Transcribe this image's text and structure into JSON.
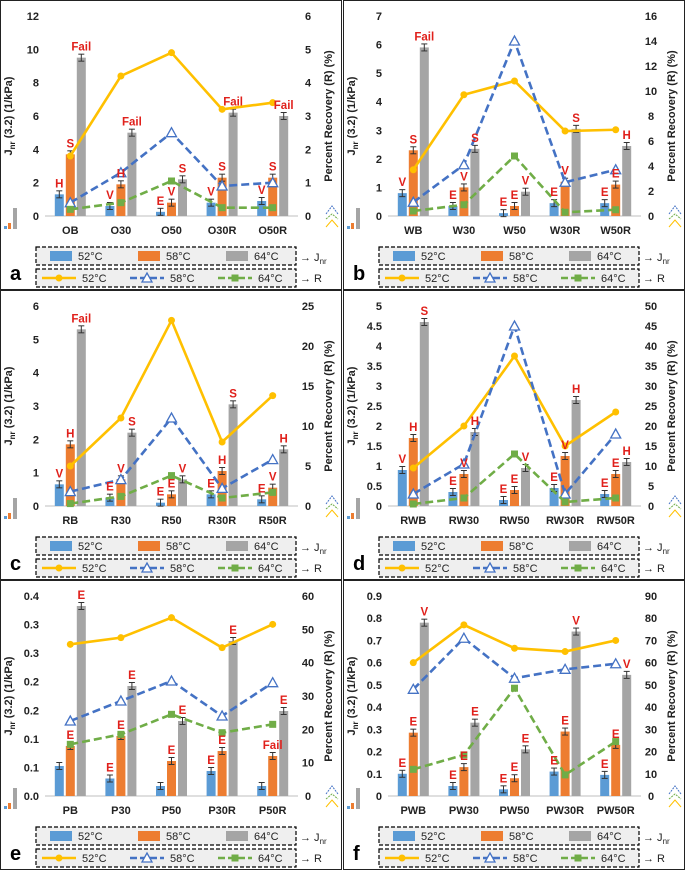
{
  "figure": {
    "colors": {
      "c52": "#5B9BD5",
      "c58": "#ED7D31",
      "c64": "#A5A5A5",
      "r52": "#FFC000",
      "r58": "#4472C4",
      "r64": "#70AD47",
      "label": "#E0201B"
    },
    "legend": {
      "bar_labels": [
        "52°C",
        "58°C",
        "64°C"
      ],
      "line_labels": [
        "52°C",
        "58°C",
        "64°C"
      ],
      "jnr_arrow": "→ J",
      "jnr_sub": "nr",
      "r_arrow": "→ R"
    },
    "y_left_title": "J",
    "y_left_sub": "nr",
    "y_left_rest": " (3.2) (1/kPa)",
    "y_right_title": "Percent Recovery (R) (%)"
  },
  "chart_data": [
    {
      "panel": "a",
      "type": "bar",
      "categories": [
        "OB",
        "O30",
        "O50",
        "O30R",
        "O50R"
      ],
      "left_ylim": [
        0,
        12
      ],
      "left_ticks": [
        "0",
        "2",
        "4",
        "6",
        "8",
        "10",
        "12"
      ],
      "right_ylim": [
        0,
        6
      ],
      "right_ticks": [
        "0",
        "1",
        "2",
        "3",
        "4",
        "5",
        "6"
      ],
      "jnr": [
        {
          "name": "52°C",
          "values": [
            1.3,
            0.6,
            0.25,
            0.8,
            0.9
          ]
        },
        {
          "name": "58°C",
          "values": [
            3.7,
            1.9,
            0.8,
            2.3,
            2.3
          ]
        },
        {
          "name": "64°C",
          "values": [
            9.5,
            5.0,
            2.2,
            6.2,
            6.0
          ]
        }
      ],
      "recovery": [
        {
          "name": "52°C",
          "values": [
            1.8,
            4.2,
            4.9,
            3.2,
            3.4
          ]
        },
        {
          "name": "58°C",
          "values": [
            0.4,
            1.3,
            2.5,
            0.9,
            1.0
          ]
        },
        {
          "name": "64°C",
          "values": [
            0.2,
            0.4,
            1.05,
            0.25,
            0.25
          ]
        }
      ],
      "labels": [
        [
          {
            "text": "H",
            "bar": 0,
            "value": 1.3
          },
          {
            "text": "S",
            "bar": 1,
            "value": 3.7
          },
          {
            "text": "Fail",
            "bar": 2,
            "value": 9.5
          }
        ],
        [
          {
            "text": "V",
            "bar": 0,
            "value": 0.6
          },
          {
            "text": "H",
            "bar": 1,
            "value": 1.9
          },
          {
            "text": "Fail",
            "bar": 2,
            "value": 5.0
          }
        ],
        [
          {
            "text": "E",
            "bar": 0,
            "value": 0.25
          },
          {
            "text": "V",
            "bar": 1,
            "value": 0.8
          },
          {
            "text": "S",
            "bar": 2,
            "value": 2.2
          }
        ],
        [
          {
            "text": "V",
            "bar": 0,
            "value": 0.8
          },
          {
            "text": "S",
            "bar": 1,
            "value": 2.3
          },
          {
            "text": "Fail",
            "bar": 2,
            "value": 6.2
          }
        ],
        [
          {
            "text": "V",
            "bar": 0,
            "value": 0.9
          },
          {
            "text": "S",
            "bar": 1,
            "value": 2.3
          },
          {
            "text": "Fail",
            "bar": 2,
            "value": 6.0
          }
        ]
      ]
    },
    {
      "panel": "b",
      "type": "bar",
      "categories": [
        "WB",
        "W30",
        "W50",
        "W30R",
        "W50R"
      ],
      "left_ylim": [
        0,
        7
      ],
      "left_ticks": [
        "0",
        "1",
        "2",
        "3",
        "4",
        "5",
        "6",
        "7"
      ],
      "right_ylim": [
        0,
        16
      ],
      "right_ticks": [
        "0",
        "2",
        "4",
        "6",
        "8",
        "10",
        "12",
        "14",
        "16"
      ],
      "jnr": [
        {
          "name": "52°C",
          "values": [
            0.8,
            0.35,
            0.1,
            0.45,
            0.45
          ]
        },
        {
          "name": "58°C",
          "values": [
            2.3,
            1.0,
            0.35,
            1.2,
            1.1
          ]
        },
        {
          "name": "64°C",
          "values": [
            5.9,
            2.35,
            0.85,
            3.05,
            2.45
          ]
        }
      ],
      "recovery": [
        {
          "name": "52°C",
          "values": [
            3.7,
            9.7,
            10.8,
            6.8,
            6.9
          ]
        },
        {
          "name": "58°C",
          "values": [
            1.1,
            4.1,
            14.0,
            2.7,
            3.7
          ]
        },
        {
          "name": "64°C",
          "values": [
            0.4,
            0.9,
            4.8,
            0.3,
            0.5
          ]
        }
      ],
      "labels": [
        [
          {
            "text": "V",
            "bar": 0,
            "value": 0.8
          },
          {
            "text": "S",
            "bar": 1,
            "value": 2.3
          },
          {
            "text": "Fail",
            "bar": 2,
            "value": 5.9
          }
        ],
        [
          {
            "text": "E",
            "bar": 0,
            "value": 0.35
          },
          {
            "text": "V",
            "bar": 1,
            "value": 1.0
          },
          {
            "text": "S",
            "bar": 2,
            "value": 2.35
          }
        ],
        [
          {
            "text": "E",
            "bar": 0,
            "value": 0.1
          },
          {
            "text": "E",
            "bar": 1,
            "value": 0.35
          },
          {
            "text": "V",
            "bar": 2,
            "value": 0.85
          }
        ],
        [
          {
            "text": "E",
            "bar": 0,
            "value": 0.45
          },
          {
            "text": "V",
            "bar": 1,
            "value": 1.2
          },
          {
            "text": "S",
            "bar": 2,
            "value": 3.05
          }
        ],
        [
          {
            "text": "E",
            "bar": 0,
            "value": 0.45
          },
          {
            "text": "E",
            "bar": 1,
            "value": 1.1
          },
          {
            "text": "H",
            "bar": 2,
            "value": 2.45
          }
        ]
      ]
    },
    {
      "panel": "c",
      "type": "bar",
      "categories": [
        "RB",
        "R30",
        "R50",
        "R30R",
        "R50R"
      ],
      "left_ylim": [
        0,
        6
      ],
      "left_ticks": [
        "0",
        "1",
        "2",
        "3",
        "4",
        "5",
        "6"
      ],
      "right_ylim": [
        0,
        25
      ],
      "right_ticks": [
        "0",
        "5",
        "10",
        "15",
        "20",
        "25"
      ],
      "jnr": [
        {
          "name": "52°C",
          "values": [
            0.65,
            0.25,
            0.1,
            0.35,
            0.2
          ]
        },
        {
          "name": "58°C",
          "values": [
            1.85,
            0.8,
            0.35,
            1.05,
            0.55
          ]
        },
        {
          "name": "64°C",
          "values": [
            5.3,
            2.2,
            0.8,
            3.05,
            1.7
          ]
        }
      ],
      "recovery": [
        {
          "name": "52°C",
          "values": [
            5.0,
            11.0,
            23.2,
            8.0,
            13.8
          ]
        },
        {
          "name": "58°C",
          "values": [
            1.8,
            3.3,
            11.0,
            2.2,
            5.8
          ]
        },
        {
          "name": "64°C",
          "values": [
            0.3,
            1.2,
            3.8,
            1.0,
            1.7
          ]
        }
      ],
      "labels": [
        [
          {
            "text": "V",
            "bar": 0,
            "value": 0.65
          },
          {
            "text": "H",
            "bar": 1,
            "value": 1.85
          },
          {
            "text": "Fail",
            "bar": 2,
            "value": 5.3
          }
        ],
        [
          {
            "text": "E",
            "bar": 0,
            "value": 0.25
          },
          {
            "text": "V",
            "bar": 1,
            "value": 0.8
          },
          {
            "text": "S",
            "bar": 2,
            "value": 2.2
          }
        ],
        [
          {
            "text": "E",
            "bar": 0,
            "value": 0.1
          },
          {
            "text": "E",
            "bar": 1,
            "value": 0.35
          },
          {
            "text": "V",
            "bar": 2,
            "value": 0.8
          }
        ],
        [
          {
            "text": "E",
            "bar": 0,
            "value": 0.35
          },
          {
            "text": "H",
            "bar": 1,
            "value": 1.05
          },
          {
            "text": "S",
            "bar": 2,
            "value": 3.05
          }
        ],
        [
          {
            "text": "E",
            "bar": 0,
            "value": 0.2
          },
          {
            "text": "V",
            "bar": 1,
            "value": 0.55
          },
          {
            "text": "H",
            "bar": 2,
            "value": 1.7
          }
        ]
      ]
    },
    {
      "panel": "d",
      "type": "bar",
      "categories": [
        "RWB",
        "RW30",
        "RW50",
        "RW30R",
        "RW50R"
      ],
      "left_ylim": [
        0,
        5
      ],
      "left_ticks": [
        "0",
        "0.5",
        "1",
        "1.5",
        "2",
        "2.5",
        "3",
        "3.5",
        "4",
        "4.5",
        "5"
      ],
      "right_ylim": [
        0,
        50
      ],
      "right_ticks": [
        "0",
        "5",
        "10",
        "15",
        "20",
        "25",
        "30",
        "35",
        "40",
        "45",
        "50"
      ],
      "jnr": [
        {
          "name": "52°C",
          "values": [
            0.9,
            0.35,
            0.15,
            0.45,
            0.3
          ]
        },
        {
          "name": "58°C",
          "values": [
            1.7,
            0.8,
            0.4,
            1.25,
            0.8
          ]
        },
        {
          "name": "64°C",
          "values": [
            4.6,
            1.85,
            0.95,
            2.65,
            1.1
          ]
        }
      ],
      "recovery": [
        {
          "name": "52°C",
          "values": [
            9.5,
            20.0,
            37.5,
            15.0,
            23.5
          ]
        },
        {
          "name": "58°C",
          "values": [
            3.0,
            10.5,
            45.0,
            3.0,
            18.0
          ]
        },
        {
          "name": "64°C",
          "values": [
            0.5,
            2.0,
            13.0,
            1.0,
            2.0
          ]
        }
      ],
      "labels": [
        [
          {
            "text": "V",
            "bar": 0,
            "value": 0.9
          },
          {
            "text": "H",
            "bar": 1,
            "value": 1.7
          },
          {
            "text": "S",
            "bar": 2,
            "value": 4.6
          }
        ],
        [
          {
            "text": "E",
            "bar": 0,
            "value": 0.35
          },
          {
            "text": "V",
            "bar": 1,
            "value": 0.8
          },
          {
            "text": "H",
            "bar": 2,
            "value": 1.85
          }
        ],
        [
          {
            "text": "E",
            "bar": 0,
            "value": 0.15
          },
          {
            "text": "E",
            "bar": 1,
            "value": 0.4
          },
          {
            "text": "V",
            "bar": 2,
            "value": 0.95
          }
        ],
        [
          {
            "text": "E",
            "bar": 0,
            "value": 0.45
          },
          {
            "text": "V",
            "bar": 1,
            "value": 1.25
          },
          {
            "text": "H",
            "bar": 2,
            "value": 2.65
          }
        ],
        [
          {
            "text": "E",
            "bar": 0,
            "value": 0.3
          },
          {
            "text": "E",
            "bar": 1,
            "value": 0.8
          },
          {
            "text": "H",
            "bar": 2,
            "value": 1.1
          }
        ]
      ]
    },
    {
      "panel": "e",
      "type": "bar",
      "categories": [
        "PB",
        "P30",
        "P50",
        "P30R",
        "P50R"
      ],
      "left_ylim": [
        0,
        0.4
      ],
      "left_ticks": [
        "0.0",
        "0.1",
        "0.1",
        "0.2",
        "0.2",
        "0.3",
        "0.3",
        "0.4"
      ],
      "right_ylim": [
        0,
        60
      ],
      "right_ticks": [
        "0",
        "10",
        "20",
        "30",
        "40",
        "50",
        "60"
      ],
      "jnr": [
        {
          "name": "52°C",
          "values": [
            0.06,
            0.035,
            0.02,
            0.05,
            0.02
          ]
        },
        {
          "name": "58°C",
          "values": [
            0.1,
            0.12,
            0.07,
            0.09,
            0.08
          ]
        },
        {
          "name": "64°C",
          "values": [
            0.38,
            0.22,
            0.15,
            0.31,
            0.17
          ]
        }
      ],
      "recovery": [
        {
          "name": "52°C",
          "values": [
            45.5,
            47.5,
            53.5,
            44.5,
            51.5
          ]
        },
        {
          "name": "58°C",
          "values": [
            22.5,
            28.5,
            34.5,
            24.0,
            34.0
          ]
        },
        {
          "name": "64°C",
          "values": [
            15.5,
            18.5,
            24.5,
            19.0,
            21.5
          ]
        }
      ],
      "labels": [
        [
          {
            "text": "E",
            "bar": 1,
            "value": 0.1
          },
          {
            "text": "E",
            "bar": 2,
            "value": 0.38
          }
        ],
        [
          {
            "text": "E",
            "bar": 0,
            "value": 0.035
          },
          {
            "text": "E",
            "bar": 1,
            "value": 0.12
          },
          {
            "text": "E",
            "bar": 2,
            "value": 0.22
          }
        ],
        [
          {
            "text": "E",
            "bar": 1,
            "value": 0.07
          },
          {
            "text": "E",
            "bar": 2,
            "value": 0.15
          }
        ],
        [
          {
            "text": "E",
            "bar": 0,
            "value": 0.05
          },
          {
            "text": "E",
            "bar": 1,
            "value": 0.09
          },
          {
            "text": "E",
            "bar": 2,
            "value": 0.31
          }
        ],
        [
          {
            "text": "Fail",
            "bar": 1,
            "value": 0.08
          },
          {
            "text": "E",
            "bar": 2,
            "value": 0.17
          }
        ]
      ]
    },
    {
      "panel": "f",
      "type": "bar",
      "categories": [
        "PWB",
        "PW30",
        "PW50",
        "PW30R",
        "PW50R"
      ],
      "left_ylim": [
        0,
        0.9
      ],
      "left_ticks": [
        "0",
        "0.1",
        "0.2",
        "0.3",
        "0.4",
        "0.5",
        "0.6",
        "0.7",
        "0.8",
        "0.9"
      ],
      "right_ylim": [
        0,
        90
      ],
      "right_ticks": [
        "0",
        "10",
        "20",
        "30",
        "40",
        "50",
        "60",
        "70",
        "80",
        "90"
      ],
      "jnr": [
        {
          "name": "52°C",
          "values": [
            0.1,
            0.045,
            0.03,
            0.11,
            0.095
          ]
        },
        {
          "name": "58°C",
          "values": [
            0.285,
            0.13,
            0.08,
            0.29,
            0.23
          ]
        },
        {
          "name": "64°C",
          "values": [
            0.78,
            0.33,
            0.21,
            0.74,
            0.545
          ]
        }
      ],
      "recovery": [
        {
          "name": "52°C",
          "values": [
            60.0,
            77.0,
            66.5,
            65.0,
            70.0
          ]
        },
        {
          "name": "58°C",
          "values": [
            48.0,
            71.0,
            53.0,
            57.0,
            59.5
          ]
        },
        {
          "name": "64°C",
          "values": [
            12.0,
            18.5,
            48.5,
            9.5,
            24.5
          ]
        }
      ],
      "labels": [
        [
          {
            "text": "E",
            "bar": 0,
            "value": 0.1
          },
          {
            "text": "E",
            "bar": 1,
            "value": 0.285
          },
          {
            "text": "V",
            "bar": 2,
            "value": 0.78
          }
        ],
        [
          {
            "text": "E",
            "bar": 0,
            "value": 0.045
          },
          {
            "text": "E",
            "bar": 1,
            "value": 0.13
          },
          {
            "text": "E",
            "bar": 2,
            "value": 0.33
          }
        ],
        [
          {
            "text": "E",
            "bar": 0,
            "value": 0.03
          },
          {
            "text": "E",
            "bar": 1,
            "value": 0.08
          },
          {
            "text": "E",
            "bar": 2,
            "value": 0.21
          }
        ],
        [
          {
            "text": "E",
            "bar": 0,
            "value": 0.11
          },
          {
            "text": "E",
            "bar": 1,
            "value": 0.29
          },
          {
            "text": "V",
            "bar": 2,
            "value": 0.74
          }
        ],
        [
          {
            "text": "E",
            "bar": 0,
            "value": 0.095
          },
          {
            "text": "E",
            "bar": 1,
            "value": 0.23
          },
          {
            "text": "V",
            "bar": 2,
            "value": 0.545
          }
        ]
      ]
    }
  ]
}
